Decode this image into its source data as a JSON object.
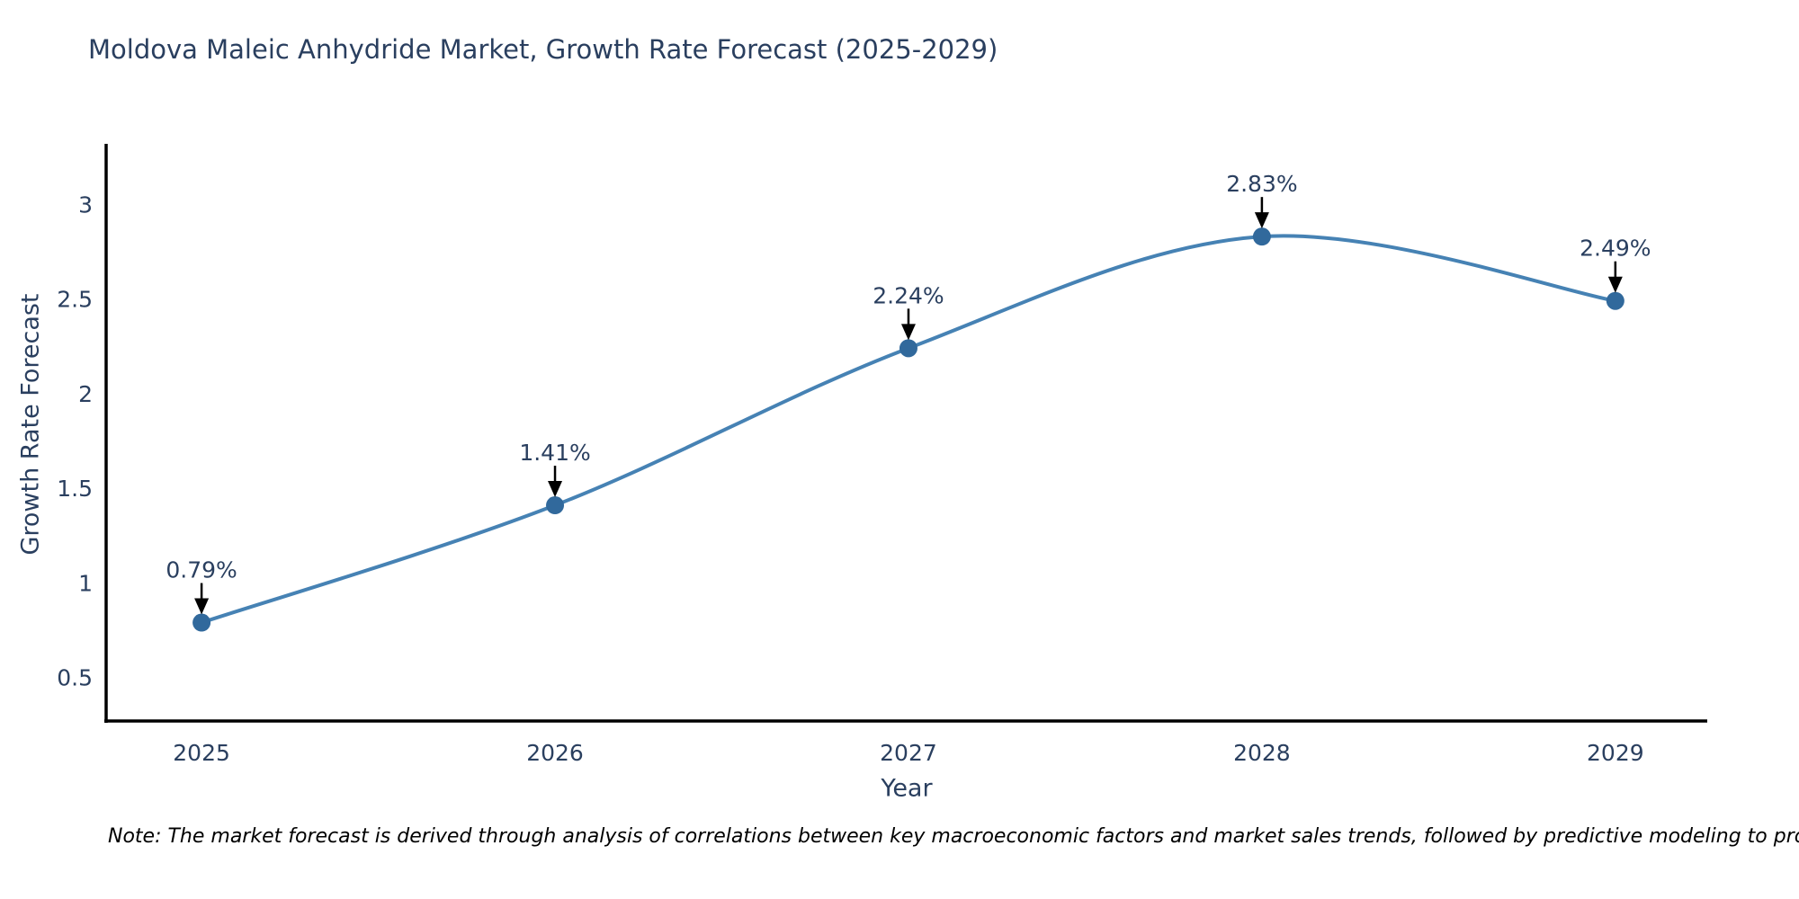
{
  "note": "Note: The market forecast is derived through analysis of correlations between key macroeconomic factors and market sales trends, followed by predictive modeling to project future sales",
  "chart_data": {
    "type": "line",
    "title": "Moldova Maleic Anhydride Market, Growth Rate Forecast (2025-2029)",
    "xlabel": "Year",
    "ylabel": "Growth Rate Forecast",
    "x": [
      2025,
      2026,
      2027,
      2028,
      2029
    ],
    "values": [
      0.79,
      1.41,
      2.24,
      2.83,
      2.49
    ],
    "point_labels": [
      "0.79%",
      "1.41%",
      "2.24%",
      "2.83%",
      "2.49%"
    ],
    "y_ticks": [
      0.5,
      1,
      1.5,
      2,
      2.5,
      3
    ],
    "xlim": [
      2024.73,
      2029.26
    ],
    "ylim": [
      0.27,
      3.32
    ],
    "line_shape": "spline",
    "grid": false,
    "legend_visible": false,
    "colors": {
      "line": "#4682b4",
      "marker": "#31699c",
      "axis": "#000000",
      "tick_text": "#2a3f5f",
      "annotation_text": "#2a3f5f",
      "arrow": "#000000",
      "title_text": "#2a3f5f",
      "note_text": "#000000",
      "background": "#ffffff"
    }
  }
}
